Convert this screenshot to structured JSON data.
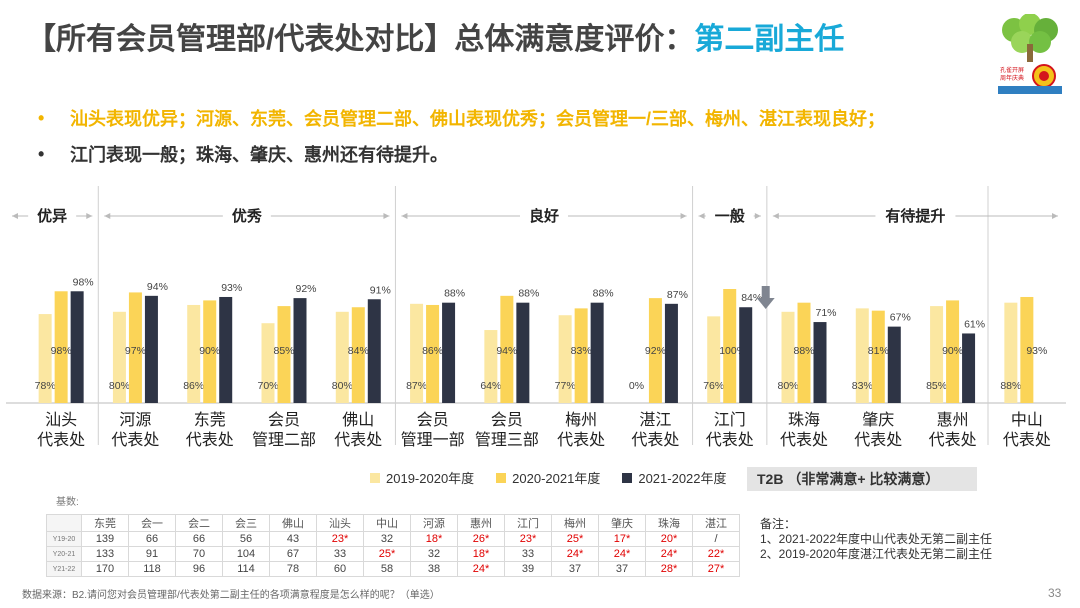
{
  "title": {
    "prefix": "【所有会员管理部/代表处对比】总体满意度评价：",
    "highlight": "第二副主任"
  },
  "bullets": [
    "汕头表现优异；河源、东莞、会员管理二部、佛山表现优秀；会员管理一/三部、梅州、湛江表现良好；",
    "江门表现一般；珠海、肇庆、惠州还有待提升。"
  ],
  "colors": {
    "s1": "#fbe7a1",
    "s2": "#fbd457",
    "s3": "#2e3445",
    "title": "#444444",
    "highlight": "#18a9d8",
    "gold": "#f2b500"
  },
  "chart_data": {
    "type": "bar",
    "title": "总体满意度评价：第二副主任",
    "categories": [
      [
        "汕头",
        "代表处"
      ],
      [
        "河源",
        "代表处"
      ],
      [
        "东莞",
        "代表处"
      ],
      [
        "会员",
        "管理二部"
      ],
      [
        "佛山",
        "代表处"
      ],
      [
        "会员",
        "管理一部"
      ],
      [
        "会员",
        "管理三部"
      ],
      [
        "梅州",
        "代表处"
      ],
      [
        "湛江",
        "代表处"
      ],
      [
        "江门",
        "代表处"
      ],
      [
        "珠海",
        "代表处"
      ],
      [
        "肇庆",
        "代表处"
      ],
      [
        "惠州",
        "代表处"
      ],
      [
        "中山",
        "代表处"
      ]
    ],
    "series": [
      {
        "name": "2019-2020年度",
        "values": [
          78,
          80,
          86,
          70,
          80,
          87,
          64,
          77,
          0,
          76,
          80,
          83,
          85,
          88
        ],
        "labels": [
          "78%",
          "80%",
          "86%",
          "70%",
          "80%",
          "87%",
          "64%",
          "77%",
          "0%",
          "76%",
          "80%",
          "83%",
          "85%",
          "88%"
        ]
      },
      {
        "name": "2020-2021年度",
        "values": [
          98,
          97,
          90,
          85,
          84,
          86,
          94,
          83,
          92,
          100,
          88,
          81,
          90,
          93
        ],
        "labels": [
          "98%",
          "97%",
          "90%",
          "85%",
          "84%",
          "86%",
          "94%",
          "83%",
          "92%",
          "100%",
          "88%",
          "81%",
          "90%",
          "93%"
        ]
      },
      {
        "name": "2021-2022年度",
        "values": [
          98,
          94,
          93,
          92,
          91,
          88,
          88,
          88,
          87,
          84,
          71,
          67,
          61,
          null
        ],
        "labels": [
          "98%",
          "94%",
          "93%",
          "92%",
          "91%",
          "88%",
          "88%",
          "88%",
          "87%",
          "84%",
          "71%",
          "67%",
          "61%",
          ""
        ]
      }
    ],
    "groups": [
      {
        "label": "优异",
        "from": 0,
        "to": 0
      },
      {
        "label": "优秀",
        "from": 1,
        "to": 4
      },
      {
        "label": "良好",
        "from": 5,
        "to": 8
      },
      {
        "label": "一般",
        "from": 9,
        "to": 9
      },
      {
        "label": "有待提升",
        "from": 10,
        "to": 13
      }
    ],
    "down_arrow_at": 9,
    "ylim": [
      0,
      100
    ],
    "xlabel": "",
    "ylabel": ""
  },
  "legend": [
    "2019-2020年度",
    "2020-2021年度",
    "2021-2022年度"
  ],
  "t2b": "T2B （非常满意+ 比较满意）",
  "base": {
    "label": "基数:",
    "headers": [
      "东莞",
      "会一",
      "会二",
      "会三",
      "佛山",
      "汕头",
      "中山",
      "河源",
      "惠州",
      "江门",
      "梅州",
      "肇庆",
      "珠海",
      "湛江"
    ],
    "rows": [
      {
        "label": "Y19-20",
        "cells": [
          "139",
          "66",
          "66",
          "56",
          "43",
          "23*",
          "32",
          "18*",
          "26*",
          "23*",
          "25*",
          "17*",
          "20*",
          "/"
        ]
      },
      {
        "label": "Y20-21",
        "cells": [
          "133",
          "91",
          "70",
          "104",
          "67",
          "33",
          "25*",
          "32",
          "18*",
          "33",
          "24*",
          "24*",
          "24*",
          "22*"
        ]
      },
      {
        "label": "Y21-22",
        "cells": [
          "170",
          "118",
          "96",
          "114",
          "78",
          "60",
          "58",
          "38",
          "24*",
          "39",
          "37",
          "37",
          "28*",
          "27*"
        ]
      }
    ]
  },
  "notes": [
    "备注：",
    "1、2021-2022年度中山代表处无第二副主任",
    "2、2019-2020年度湛江代表处无第二副主任"
  ],
  "source": "数据来源：B2.请问您对会员管理部/代表处第二副主任的各项满意程度是怎么样的呢？（单选）",
  "page_number": "33",
  "logo_text": [
    "孔雀开屏",
    "周年庆典"
  ]
}
